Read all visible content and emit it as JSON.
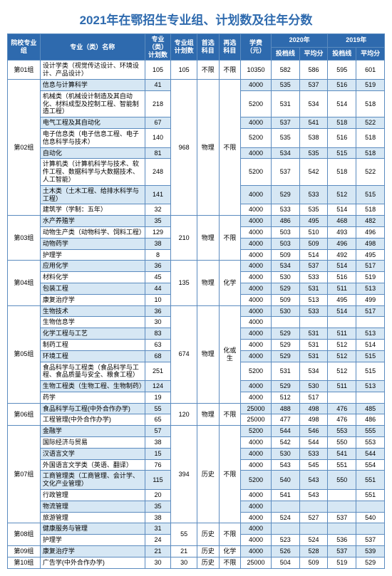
{
  "title": "2021年在鄂招生专业组、计划数及往年分数",
  "title_color": "#2e6aae",
  "title_fontsize": 17,
  "header_bg": "#2e6aae",
  "header_fg": "#ffffff",
  "alt_row_bg": "#d6e7f4",
  "border_color": "#5b8bbf",
  "cell_fontsize": 9,
  "columns": {
    "group": "院校专业组",
    "major": "专业（类）名称",
    "major_plan": "专业（类）计划数",
    "group_plan": "专业组计划数",
    "first_sub": "首选科目",
    "re_sub": "再选科目",
    "tuition": "学费（元）",
    "y2020": "2020年",
    "y2019": "2019年",
    "cutoff": "投档线",
    "avg": "平均分"
  },
  "col_widths_pct": [
    7.5,
    24,
    6,
    6,
    5,
    5,
    7,
    6.5,
    6.5,
    6.5,
    6.5
  ],
  "groups": [
    {
      "id": "g01",
      "name": "第01组",
      "group_plan": "105",
      "first_sub": "不限",
      "re_sub": "不限",
      "rows": [
        {
          "major": "设计学类（视觉传达设计、环境设计、产品设计）",
          "plan": "105",
          "tuition": "10350",
          "c20": "582",
          "a20": "586",
          "c19": "595",
          "a19": "601",
          "alt": false
        }
      ]
    },
    {
      "id": "g02",
      "name": "第02组",
      "group_plan": "968",
      "first_sub": "物理",
      "re_sub": "不限",
      "rows": [
        {
          "major": "信息与计算科学",
          "plan": "41",
          "tuition": "4000",
          "c20": "535",
          "a20": "537",
          "c19": "516",
          "a19": "519",
          "alt": true
        },
        {
          "major": "机械类（机械设计制造及其自动化、材料成型及控制工程、智能制造工程）",
          "plan": "218",
          "tuition": "5200",
          "c20": "531",
          "a20": "534",
          "c19": "514",
          "a19": "518",
          "alt": false
        },
        {
          "major": "电气工程及其自动化",
          "plan": "67",
          "tuition": "4000",
          "c20": "537",
          "a20": "541",
          "c19": "518",
          "a19": "522",
          "alt": true
        },
        {
          "major": "电子信息类（电子信息工程、电子信息科学与技术）",
          "plan": "140",
          "tuition": "5200",
          "c20": "535",
          "a20": "538",
          "c19": "516",
          "a19": "518",
          "alt": false
        },
        {
          "major": "自动化",
          "plan": "81",
          "tuition": "4000",
          "c20": "534",
          "a20": "535",
          "c19": "515",
          "a19": "518",
          "alt": true
        },
        {
          "major": "计算机类（计算机科学与技术、软件工程、数据科学与大数据技术、人工智能）",
          "plan": "248",
          "tuition": "5200",
          "c20": "537",
          "a20": "542",
          "c19": "518",
          "a19": "522",
          "alt": false
        },
        {
          "major": "土木类（土木工程、给排水科学与工程）",
          "plan": "141",
          "tuition": "4000",
          "c20": "529",
          "a20": "533",
          "c19": "512",
          "a19": "515",
          "alt": true
        },
        {
          "major": "建筑学（学制：五年）",
          "plan": "32",
          "tuition": "4000",
          "c20": "533",
          "a20": "535",
          "c19": "514",
          "a19": "518",
          "alt": false
        }
      ]
    },
    {
      "id": "g03",
      "name": "第03组",
      "group_plan": "210",
      "first_sub": "物理",
      "re_sub": "不限",
      "rows": [
        {
          "major": "水产养殖学",
          "plan": "35",
          "tuition": "4000",
          "c20": "486",
          "a20": "495",
          "c19": "468",
          "a19": "482",
          "alt": true
        },
        {
          "major": "动物生产类（动物科学、饲料工程）",
          "plan": "129",
          "tuition": "4000",
          "c20": "503",
          "a20": "510",
          "c19": "493",
          "a19": "496",
          "alt": false
        },
        {
          "major": "动物药学",
          "plan": "38",
          "tuition": "4000",
          "c20": "503",
          "a20": "509",
          "c19": "496",
          "a19": "498",
          "alt": true
        },
        {
          "major": "护理学",
          "plan": "8",
          "tuition": "4000",
          "c20": "509",
          "a20": "514",
          "c19": "492",
          "a19": "495",
          "alt": false
        }
      ]
    },
    {
      "id": "g04",
      "name": "第04组",
      "group_plan": "135",
      "first_sub": "物理",
      "re_sub": "化学",
      "rows": [
        {
          "major": "应用化学",
          "plan": "36",
          "tuition": "4000",
          "c20": "534",
          "a20": "537",
          "c19": "514",
          "a19": "517",
          "alt": true
        },
        {
          "major": "材料化学",
          "plan": "45",
          "tuition": "4000",
          "c20": "530",
          "a20": "533",
          "c19": "516",
          "a19": "519",
          "alt": false
        },
        {
          "major": "包装工程",
          "plan": "44",
          "tuition": "4000",
          "c20": "529",
          "a20": "531",
          "c19": "511",
          "a19": "513",
          "alt": true
        },
        {
          "major": "康复治疗学",
          "plan": "10",
          "tuition": "4000",
          "c20": "509",
          "a20": "513",
          "c19": "495",
          "a19": "499",
          "alt": false
        }
      ]
    },
    {
      "id": "g05",
      "name": "第05组",
      "group_plan": "674",
      "first_sub": "物理",
      "re_sub": "化或生",
      "rows": [
        {
          "major": "生物技术",
          "plan": "36",
          "tuition": "4000",
          "c20": "530",
          "a20": "533",
          "c19": "514",
          "a19": "517",
          "alt": true
        },
        {
          "major": "生物信息学",
          "plan": "30",
          "tuition": "4000",
          "c20": "",
          "a20": "",
          "c19": "",
          "a19": "",
          "alt": false
        },
        {
          "major": "化学工程与工艺",
          "plan": "83",
          "tuition": "4000",
          "c20": "529",
          "a20": "531",
          "c19": "511",
          "a19": "513",
          "alt": true
        },
        {
          "major": "制药工程",
          "plan": "63",
          "tuition": "4000",
          "c20": "529",
          "a20": "531",
          "c19": "512",
          "a19": "514",
          "alt": false
        },
        {
          "major": "环境工程",
          "plan": "68",
          "tuition": "4000",
          "c20": "529",
          "a20": "531",
          "c19": "512",
          "a19": "515",
          "alt": true
        },
        {
          "major": "食品科学与工程类（食品科学与工程、食品质量与安全、粮食工程）",
          "plan": "251",
          "tuition": "5200",
          "c20": "531",
          "a20": "534",
          "c19": "512",
          "a19": "515",
          "alt": false
        },
        {
          "major": "生物工程类（生物工程、生物制药）",
          "plan": "124",
          "tuition": "4000",
          "c20": "529",
          "a20": "530",
          "c19": "511",
          "a19": "513",
          "alt": true
        },
        {
          "major": "药学",
          "plan": "19",
          "tuition": "4000",
          "c20": "512",
          "a20": "517",
          "c19": "",
          "a19": "",
          "alt": false
        }
      ]
    },
    {
      "id": "g06",
      "name": "第06组",
      "group_plan": "120",
      "first_sub": "物理",
      "re_sub": "不限",
      "rows": [
        {
          "major": "食品科学与工程(中外合作办学)",
          "plan": "55",
          "tuition": "25000",
          "c20": "488",
          "a20": "498",
          "c19": "476",
          "a19": "485",
          "alt": true
        },
        {
          "major": "工程管理(中外合作办学)",
          "plan": "65",
          "tuition": "25000",
          "c20": "477",
          "a20": "498",
          "c19": "476",
          "a19": "486",
          "alt": false
        }
      ]
    },
    {
      "id": "g07",
      "name": "第07组",
      "group_plan": "394",
      "first_sub": "历史",
      "re_sub": "不限",
      "rows": [
        {
          "major": "金融学",
          "plan": "57",
          "tuition": "5200",
          "c20": "544",
          "a20": "546",
          "c19": "553",
          "a19": "555",
          "alt": true
        },
        {
          "major": "国际经济与贸易",
          "plan": "38",
          "tuition": "4000",
          "c20": "542",
          "a20": "544",
          "c19": "550",
          "a19": "553",
          "alt": false
        },
        {
          "major": "汉语言文学",
          "plan": "15",
          "tuition": "4000",
          "c20": "530",
          "a20": "533",
          "c19": "541",
          "a19": "544",
          "alt": true
        },
        {
          "major": "外国语言文学类（英语、翻译）",
          "plan": "76",
          "tuition": "4000",
          "c20": "543",
          "a20": "545",
          "c19": "551",
          "a19": "554",
          "alt": false
        },
        {
          "major": "工商管理类（工商管理、会计学、文化产业管理）",
          "plan": "115",
          "tuition": "5200",
          "c20": "540",
          "a20": "543",
          "c19": "550",
          "a19": "551",
          "alt": true
        },
        {
          "major": "行政管理",
          "plan": "20",
          "tuition": "4000",
          "c20": "541",
          "a20": "543",
          "c19": "",
          "a19": "551",
          "alt": false
        },
        {
          "major": "物流管理",
          "plan": "35",
          "tuition": "4000",
          "c20": "",
          "a20": "",
          "c19": "",
          "a19": "",
          "alt": true
        },
        {
          "major": "旅游管理",
          "plan": "38",
          "tuition": "4000",
          "c20": "524",
          "a20": "527",
          "c19": "537",
          "a19": "540",
          "alt": false
        }
      ]
    },
    {
      "id": "g08",
      "name": "第08组",
      "group_plan": "55",
      "first_sub": "历史",
      "re_sub": "不限",
      "rows": [
        {
          "major": "健康服务与管理",
          "plan": "31",
          "tuition": "4000",
          "c20": "",
          "a20": "",
          "c19": "",
          "a19": "",
          "alt": true
        },
        {
          "major": "护理学",
          "plan": "24",
          "tuition": "4000",
          "c20": "523",
          "a20": "524",
          "c19": "536",
          "a19": "537",
          "alt": false
        }
      ]
    },
    {
      "id": "g09",
      "name": "第09组",
      "group_plan": "21",
      "first_sub": "历史",
      "re_sub": "化学",
      "rows": [
        {
          "major": "康复治疗学",
          "plan": "21",
          "tuition": "4000",
          "c20": "526",
          "a20": "528",
          "c19": "537",
          "a19": "539",
          "alt": true
        }
      ]
    },
    {
      "id": "g10",
      "name": "第10组",
      "group_plan": "30",
      "first_sub": "历史",
      "re_sub": "不限",
      "rows": [
        {
          "major": "广告学(中外合作办学)",
          "plan": "30",
          "tuition": "25000",
          "c20": "504",
          "a20": "509",
          "c19": "519",
          "a19": "529",
          "alt": false
        }
      ]
    }
  ]
}
